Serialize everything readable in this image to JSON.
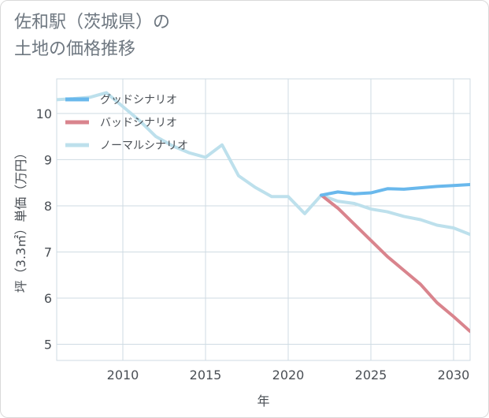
{
  "title_line1": "佐和駅（茨城県）の",
  "title_line2": "土地の価格推移",
  "colors": {
    "good": "#69b8ec",
    "bad": "#d9848d",
    "normal": "#bde0ec",
    "grid": "#cfdbe3",
    "axis_text": "#4a4f55"
  },
  "chart_data": {
    "type": "line",
    "xlabel": "年",
    "ylabel": "坪（3.3㎡）単価（万円）",
    "xlim": [
      2006,
      2031
    ],
    "ylim": [
      4.65,
      10.75
    ],
    "xticks": [
      2010,
      2015,
      2020,
      2025,
      2030
    ],
    "yticks": [
      5,
      6,
      7,
      8,
      9,
      10
    ],
    "legend_position": "top-left",
    "series": [
      {
        "name": "グッドシナリオ",
        "key": "good",
        "x": [
          2022,
          2023,
          2024,
          2025,
          2026,
          2027,
          2028,
          2029,
          2030,
          2031
        ],
        "y": [
          8.23,
          8.3,
          8.26,
          8.28,
          8.37,
          8.36,
          8.39,
          8.42,
          8.44,
          8.46
        ]
      },
      {
        "name": "バッドシナリオ",
        "key": "bad",
        "x": [
          2022,
          2023,
          2024,
          2025,
          2026,
          2027,
          2028,
          2029,
          2030,
          2031
        ],
        "y": [
          8.23,
          7.95,
          7.6,
          7.25,
          6.9,
          6.6,
          6.3,
          5.9,
          5.6,
          5.28
        ]
      },
      {
        "name": "ノーマルシナリオ",
        "key": "normal",
        "x": [
          2006,
          2007,
          2008,
          2009,
          2010,
          2011,
          2012,
          2013,
          2014,
          2015,
          2016,
          2017,
          2018,
          2019,
          2020,
          2021,
          2022,
          2023,
          2024,
          2025,
          2026,
          2027,
          2028,
          2029,
          2030,
          2031
        ],
        "y": [
          10.3,
          10.32,
          10.35,
          10.45,
          10.15,
          9.85,
          9.5,
          9.3,
          9.15,
          9.05,
          9.32,
          8.65,
          8.4,
          8.2,
          8.2,
          7.83,
          8.23,
          8.1,
          8.05,
          7.93,
          7.87,
          7.77,
          7.7,
          7.58,
          7.52,
          7.38
        ]
      }
    ]
  }
}
